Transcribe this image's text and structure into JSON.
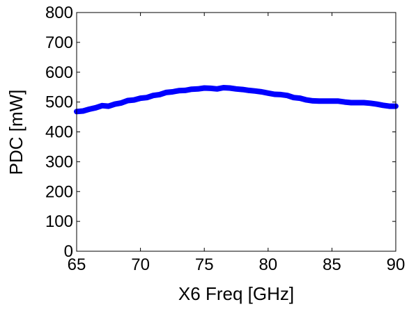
{
  "chart_data": {
    "type": "line",
    "title": "",
    "xlabel": "X6 Freq [GHz]",
    "ylabel": "PDC [mW]",
    "xlim": [
      65,
      90
    ],
    "ylim": [
      0,
      800
    ],
    "xticks": [
      65,
      70,
      75,
      80,
      85,
      90
    ],
    "yticks": [
      0,
      100,
      200,
      300,
      400,
      500,
      600,
      700,
      800
    ],
    "grid": false,
    "series": [
      {
        "color": "#0000ff",
        "x": [
          65,
          65.5,
          66,
          66.5,
          67,
          67.5,
          68,
          68.5,
          69,
          69.5,
          70,
          70.5,
          71,
          71.5,
          72,
          72.5,
          73,
          73.5,
          74,
          74.5,
          75,
          75.5,
          76,
          76.5,
          77,
          77.5,
          78,
          78.5,
          79,
          79.5,
          80,
          80.5,
          81,
          81.5,
          82,
          82.5,
          83,
          83.5,
          84,
          84.5,
          85,
          85.5,
          86,
          86.5,
          87,
          87.5,
          88,
          88.5,
          89,
          89.5,
          90
        ],
        "y": [
          468,
          470,
          476,
          481,
          488,
          486,
          493,
          497,
          505,
          507,
          513,
          515,
          522,
          525,
          532,
          534,
          538,
          539,
          543,
          544,
          547,
          546,
          544,
          548,
          547,
          544,
          542,
          539,
          537,
          534,
          530,
          526,
          525,
          522,
          515,
          513,
          507,
          504,
          503,
          503,
          503,
          503,
          500,
          498,
          498,
          498,
          496,
          493,
          489,
          486,
          486
        ]
      }
    ]
  }
}
